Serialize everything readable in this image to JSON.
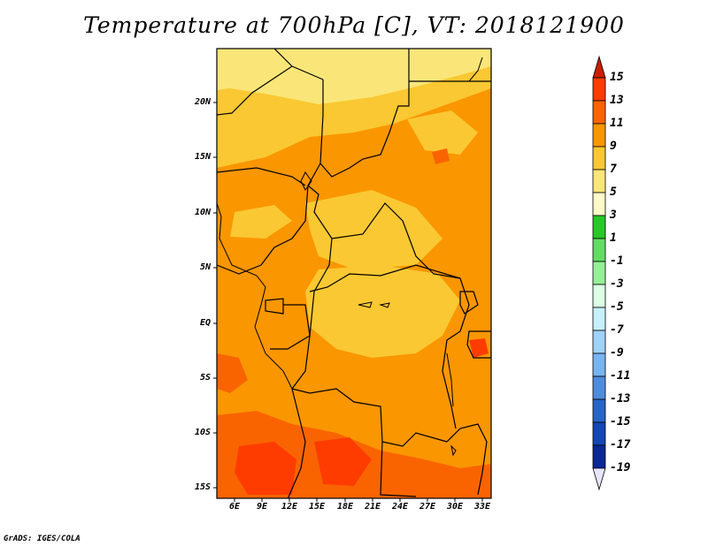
{
  "title": "Temperature at 700hPa [C], VT: 2018121900",
  "credit": "GrADS: IGES/COLA",
  "map": {
    "region": "Central Africa",
    "lat_labels": [
      "20N",
      "15N",
      "10N",
      "5N",
      "EQ",
      "5S",
      "10S",
      "15S"
    ],
    "lon_labels": [
      "6E",
      "9E",
      "12E",
      "15E",
      "18E",
      "21E",
      "24E",
      "27E",
      "30E",
      "33E"
    ]
  },
  "colorbar": {
    "levels": [
      "15",
      "13",
      "11",
      "9",
      "7",
      "5",
      "3",
      "1",
      "-1",
      "-3",
      "-5",
      "-7",
      "-9",
      "-11",
      "-13",
      "-15",
      "-17",
      "-19"
    ],
    "colors": [
      "#c81e00",
      "#ff3c00",
      "#fa6400",
      "#fa9600",
      "#fac832",
      "#fae678",
      "#fffac8",
      "#28c828",
      "#64dc64",
      "#96f096",
      "#dcffe6",
      "#c8f0fa",
      "#a0d2fa",
      "#78b4f0",
      "#508cdc",
      "#2864c8",
      "#1446b4",
      "#0a2896",
      "#000064"
    ]
  }
}
